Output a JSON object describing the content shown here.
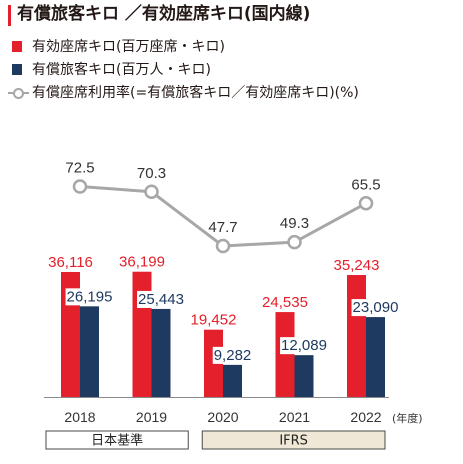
{
  "chart_data": {
    "type": "bar",
    "title": "有償旅客キロ ／有効座席キロ(国内線)",
    "categories": [
      "2018",
      "2019",
      "2020",
      "2021",
      "2022"
    ],
    "x_unit": "(年度)",
    "series": [
      {
        "name": "有効座席キロ(百万座席・キロ)",
        "type": "bar",
        "color": "#e3202b",
        "values": [
          36116,
          36199,
          19452,
          24535,
          35243
        ]
      },
      {
        "name": "有償旅客キロ(百万人・キロ)",
        "type": "bar",
        "color": "#1f3a60",
        "values": [
          26195,
          25443,
          9282,
          12089,
          23090
        ]
      },
      {
        "name": "有償座席利用率(=有償旅客キロ／有効座席キロ)(%)",
        "type": "line",
        "color": "#a7a7a7",
        "values": [
          72.5,
          70.3,
          47.7,
          49.3,
          65.5
        ]
      }
    ],
    "bands": [
      {
        "label": "日本基準",
        "from": 2018,
        "to": 2019,
        "color": "#ffffff"
      },
      {
        "label": "IFRS",
        "from": 2020,
        "to": 2022,
        "color": "#efe8d6"
      }
    ],
    "grid": false,
    "legend_position": "top-left"
  }
}
